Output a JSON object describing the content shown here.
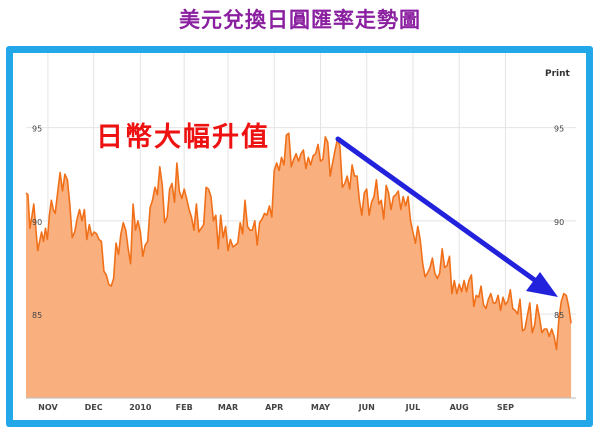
{
  "page_title": "美元兌換日圓匯率走勢圖",
  "annotation": "日幣大幅升值",
  "print_label": "Print",
  "colors": {
    "title": "#8a1fa0",
    "frame": "#22a7e8",
    "line": "#f0701a",
    "fill": "#f9b07e",
    "annotation": "#ee1111",
    "arrow": "#2222dd"
  },
  "chart_data": {
    "type": "area",
    "title": "",
    "xlabel": "",
    "ylabel": "",
    "ylim": [
      80.5,
      99
    ],
    "grid": true,
    "y_ticks": [
      85,
      90,
      95
    ],
    "x_tick_labels": [
      "NOV",
      "DEC",
      "2010",
      "FEB",
      "MAR",
      "APR",
      "MAY",
      "JUN",
      "JUL",
      "AUG",
      "SEP"
    ],
    "x_tick_positions": [
      4.5,
      13.9,
      23.5,
      32.5,
      41.5,
      51,
      60.5,
      70,
      79.5,
      89,
      98.5
    ],
    "x_range": [
      0,
      113
    ],
    "series": [
      {
        "x": [
          0,
          0.4,
          0.8,
          1.2,
          1.6,
          2,
          2.4,
          2.8,
          3.2,
          3.6,
          4,
          4.4,
          4.8,
          5.2,
          5.6,
          6,
          6.5,
          7,
          7.5,
          8,
          8.5,
          9,
          9.5,
          10,
          10.5,
          11,
          11.5,
          12,
          12.5,
          13,
          13.5,
          14,
          14.5,
          15,
          15.5,
          16,
          16.5,
          17,
          17.5,
          18,
          18.5,
          19,
          19.5,
          20,
          20.5,
          21,
          21.5,
          22,
          22.5,
          23,
          23.5,
          24,
          24.5,
          25,
          25.5,
          26,
          26.5,
          27,
          27.5,
          28,
          28.5,
          29,
          29.5,
          30,
          30.5,
          31,
          31.5,
          32,
          32.5,
          33,
          33.5,
          34,
          34.5,
          35,
          35.5,
          36,
          36.5,
          37,
          37.5,
          38,
          38.5,
          39,
          39.5,
          40,
          40.5,
          41,
          41.5,
          42,
          42.5,
          43,
          43.5,
          44,
          44.5,
          45,
          45.5,
          46,
          46.5,
          47,
          47.5,
          48,
          48.5,
          49,
          49.5,
          50,
          50.5,
          51,
          51.5,
          52,
          52.5,
          53,
          53.5,
          54,
          54.5,
          55,
          55.5,
          56,
          56.5,
          57,
          57.5,
          58,
          58.5,
          59,
          59.5,
          60,
          60.5,
          61,
          61.5,
          62,
          62.5,
          63,
          63.5,
          64,
          64.5,
          65,
          65.5,
          66,
          66.5,
          67,
          67.5,
          68,
          68.5,
          69,
          69.5,
          70,
          70.5,
          71,
          71.5,
          72,
          72.5,
          73,
          73.5,
          74,
          74.5,
          75,
          75.5,
          76,
          76.5,
          77,
          77.5,
          78,
          78.5,
          79,
          79.5,
          80,
          80.5,
          81,
          81.5,
          82,
          82.5,
          83,
          83.5,
          84,
          84.5,
          85,
          85.5,
          86,
          86.5,
          87,
          87.5,
          88,
          88.5,
          89,
          89.5,
          90,
          90.5,
          91,
          91.5,
          92,
          92.5,
          93,
          93.5,
          94,
          94.5,
          95,
          95.5,
          96,
          96.5,
          97,
          97.5,
          98,
          98.5,
          99,
          99.5,
          100,
          100.5,
          101,
          101.5,
          102,
          102.5,
          103,
          103.5,
          104,
          104.5,
          105,
          105.5,
          106,
          106.5,
          107,
          107.5,
          108,
          108.5,
          109,
          109.5,
          110,
          110.5,
          111,
          111.5,
          112
        ],
        "values": [
          91.5,
          91.4,
          89.6,
          90.2,
          90.9,
          89.7,
          88.4,
          88.9,
          89.4,
          88.9,
          89.6,
          89.0,
          90.3,
          91.1,
          90.6,
          90.4,
          91.5,
          92.6,
          91.6,
          92.5,
          92.2,
          90.9,
          89.1,
          89.4,
          90.1,
          90.6,
          90.0,
          90.6,
          89.0,
          89.8,
          89.2,
          89.4,
          89.3,
          89.0,
          88.9,
          87.3,
          87.1,
          86.6,
          86.5,
          86.9,
          88.8,
          88.2,
          89.3,
          89.9,
          89.5,
          88.5,
          87.7,
          90.9,
          89.5,
          90.0,
          89.4,
          88.1,
          88.7,
          88.9,
          90.7,
          91.1,
          91.8,
          91.4,
          92.9,
          91.9,
          89.9,
          90.2,
          91.7,
          92.0,
          91.0,
          93.1,
          91.6,
          91.2,
          91.7,
          91.2,
          90.6,
          90.2,
          89.5,
          90.9,
          89.4,
          89.6,
          89.8,
          91.8,
          91.7,
          91.3,
          90.0,
          90.3,
          88.5,
          90.3,
          89.1,
          89.7,
          88.4,
          89.0,
          88.6,
          88.7,
          88.8,
          89.9,
          89.3,
          91.1,
          89.7,
          89.5,
          89.5,
          90.0,
          88.7,
          89.9,
          90.1,
          90.4,
          90.3,
          90.8,
          90.2,
          92.7,
          93.1,
          92.7,
          93.4,
          93.0,
          94.6,
          94.7,
          92.9,
          93.3,
          93.6,
          93.2,
          93.6,
          93.8,
          92.8,
          93.4,
          93.0,
          93.5,
          93.6,
          94.1,
          93.2,
          93.3,
          94.5,
          94.2,
          92.4,
          93.1,
          93.8,
          94.4,
          94.0,
          91.8,
          92.0,
          92.4,
          91.7,
          93.0,
          92.4,
          92.4,
          91.1,
          90.3,
          91.5,
          91.7,
          90.3,
          91.0,
          91.3,
          92.2,
          90.9,
          91.1,
          90.1,
          91.9,
          91.5,
          90.6,
          91.3,
          91.4,
          91.6,
          90.6,
          91.3,
          90.8,
          91.3,
          90.0,
          89.4,
          88.8,
          89.7,
          89.0,
          87.7,
          87.0,
          87.2,
          87.5,
          88.0,
          87.2,
          86.9,
          87.2,
          88.5,
          87.5,
          87.6,
          88.1,
          86.1,
          86.8,
          86.1,
          86.6,
          86.2,
          86.8,
          86.2,
          86.8,
          87.1,
          85.4,
          86.0,
          85.9,
          86.5,
          85.5,
          85.3,
          85.8,
          86.1,
          85.6,
          85.6,
          86.0,
          85.2,
          85.9,
          85.5,
          85.7,
          86.3,
          85.3,
          85.2,
          85.0,
          85.8,
          84.1,
          84.2,
          84.9,
          85.6,
          84.0,
          84.4,
          85.5,
          84.8,
          84.0,
          84.2,
          84.2,
          83.8,
          84.2,
          83.8,
          83.1,
          84.8,
          85.7,
          86.1,
          86.0,
          85.4,
          84.5
        ]
      }
    ]
  }
}
